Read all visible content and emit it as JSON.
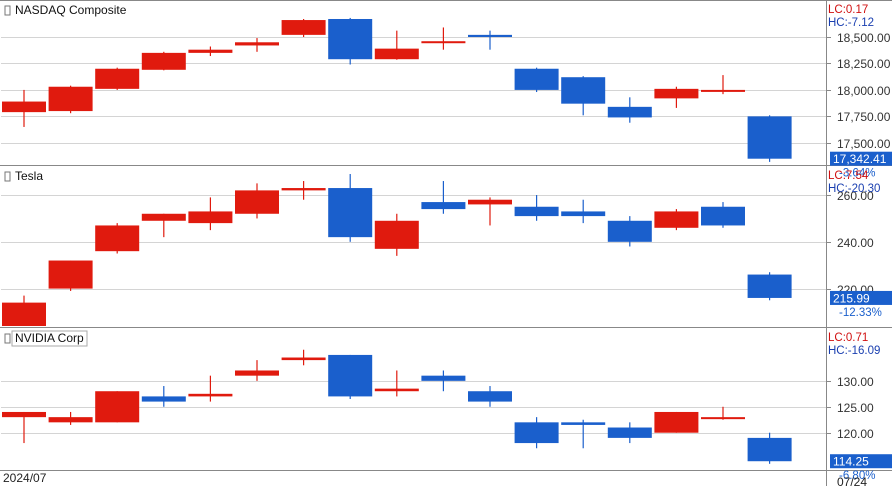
{
  "chart_data": [
    {
      "type": "candlestick",
      "title": "NASDAQ Composite",
      "lc": "LC:0.17",
      "hc": "HC:-7.12",
      "price_tag": "17,342.41",
      "change_tag": "-3.64%",
      "ylim": [
        17300,
        18840
      ],
      "yticks": [
        17500,
        17750,
        18000,
        18250,
        18500
      ],
      "ytick_labels": [
        "17,500.00",
        "17,750.00",
        "18,000.00",
        "18,250.00",
        "18,500.00"
      ],
      "candles": [
        {
          "o": 17790,
          "h": 18000,
          "l": 17650,
          "c": 17890
        },
        {
          "o": 17800,
          "h": 18040,
          "l": 17780,
          "c": 18030
        },
        {
          "o": 18010,
          "h": 18210,
          "l": 18000,
          "c": 18200
        },
        {
          "o": 18190,
          "h": 18360,
          "l": 18185,
          "c": 18350
        },
        {
          "o": 18350,
          "h": 18410,
          "l": 18320,
          "c": 18380
        },
        {
          "o": 18420,
          "h": 18490,
          "l": 18360,
          "c": 18450
        },
        {
          "o": 18520,
          "h": 18670,
          "l": 18500,
          "c": 18660
        },
        {
          "o": 18670,
          "h": 18680,
          "l": 18240,
          "c": 18290
        },
        {
          "o": 18290,
          "h": 18560,
          "l": 18285,
          "c": 18390
        },
        {
          "o": 18460,
          "h": 18590,
          "l": 18380,
          "c": 18460
        },
        {
          "o": 18520,
          "h": 18560,
          "l": 18380,
          "c": 18500
        },
        {
          "o": 18200,
          "h": 18210,
          "l": 17980,
          "c": 18000
        },
        {
          "o": 18120,
          "h": 18130,
          "l": 17760,
          "c": 17870
        },
        {
          "o": 17840,
          "h": 17930,
          "l": 17690,
          "c": 17740
        },
        {
          "o": 17920,
          "h": 18030,
          "l": 17830,
          "c": 18010
        },
        {
          "o": 17990,
          "h": 18140,
          "l": 17960,
          "c": 18000
        },
        {
          "o": 17750,
          "h": 17760,
          "l": 17320,
          "c": 17350
        }
      ]
    },
    {
      "type": "candlestick",
      "title": "Tesla",
      "lc": "LC:7.54",
      "hc": "HC:-20.30",
      "price_tag": "215.99",
      "change_tag": "-12.33%",
      "ylim": [
        204,
        272
      ],
      "yticks": [
        220,
        240,
        260
      ],
      "ytick_labels": [
        "220.00",
        "240.00",
        "260.00"
      ],
      "candles": [
        {
          "o": 204,
          "h": 217,
          "l": 204,
          "c": 214
        },
        {
          "o": 220,
          "h": 232,
          "l": 219,
          "c": 232
        },
        {
          "o": 236,
          "h": 248,
          "l": 235,
          "c": 247
        },
        {
          "o": 249,
          "h": 252,
          "l": 242,
          "c": 252
        },
        {
          "o": 248,
          "h": 259,
          "l": 245,
          "c": 253
        },
        {
          "o": 252,
          "h": 265,
          "l": 250,
          "c": 262
        },
        {
          "o": 262,
          "h": 266,
          "l": 258,
          "c": 263
        },
        {
          "o": 263,
          "h": 269,
          "l": 240,
          "c": 242
        },
        {
          "o": 237,
          "h": 252,
          "l": 234,
          "c": 249
        },
        {
          "o": 257,
          "h": 266,
          "l": 252,
          "c": 254
        },
        {
          "o": 256,
          "h": 259,
          "l": 247,
          "c": 258
        },
        {
          "o": 255,
          "h": 260,
          "l": 249,
          "c": 251
        },
        {
          "o": 253,
          "h": 258,
          "l": 248,
          "c": 251
        },
        {
          "o": 249,
          "h": 251,
          "l": 238,
          "c": 240
        },
        {
          "o": 246,
          "h": 254,
          "l": 245,
          "c": 253
        },
        {
          "o": 255,
          "h": 257,
          "l": 246,
          "c": 247
        },
        {
          "o": 226,
          "h": 227,
          "l": 215,
          "c": 216
        }
      ]
    },
    {
      "type": "candlestick",
      "title": "NVIDIA Corp",
      "lc": "LC:0.71",
      "hc": "HC:-16.09",
      "price_tag": "114.25",
      "change_tag": "-6.80%",
      "ylim": [
        113,
        140
      ],
      "yticks": [
        120,
        125,
        130
      ],
      "ytick_labels": [
        "120.00",
        "125.00",
        "130.00"
      ],
      "candles": [
        {
          "o": 123,
          "h": 124,
          "l": 118,
          "c": 124
        },
        {
          "o": 122,
          "h": 124,
          "l": 121.5,
          "c": 123
        },
        {
          "o": 122,
          "h": 128,
          "l": 122,
          "c": 128
        },
        {
          "o": 127,
          "h": 129,
          "l": 125,
          "c": 126
        },
        {
          "o": 127,
          "h": 131,
          "l": 126,
          "c": 127.5
        },
        {
          "o": 131,
          "h": 134,
          "l": 130,
          "c": 132
        },
        {
          "o": 134,
          "h": 136,
          "l": 133,
          "c": 134.5
        },
        {
          "o": 135,
          "h": 135,
          "l": 126.5,
          "c": 127
        },
        {
          "o": 128,
          "h": 132,
          "l": 127,
          "c": 128.5
        },
        {
          "o": 131,
          "h": 132,
          "l": 128,
          "c": 130
        },
        {
          "o": 128,
          "h": 129,
          "l": 125,
          "c": 126
        },
        {
          "o": 122,
          "h": 123,
          "l": 117,
          "c": 118
        },
        {
          "o": 122,
          "h": 122.5,
          "l": 117,
          "c": 121.5
        },
        {
          "o": 121,
          "h": 122,
          "l": 118,
          "c": 119
        },
        {
          "o": 120,
          "h": 124,
          "l": 120,
          "c": 124
        },
        {
          "o": 123,
          "h": 125,
          "l": 122.5,
          "c": 123
        },
        {
          "o": 119,
          "h": 120,
          "l": 114,
          "c": 114.5
        }
      ]
    }
  ],
  "footer": {
    "left_date": "2024/07",
    "right_date": "07/24"
  },
  "colors": {
    "up": "#e01a0e",
    "down": "#1a5fcc",
    "lc": "#d01010",
    "hc": "#1a3fb0",
    "grid": "#d4d4d4",
    "axis_text": "#333333",
    "separator": "#888888",
    "tag_bg": "#1a5fcc"
  }
}
